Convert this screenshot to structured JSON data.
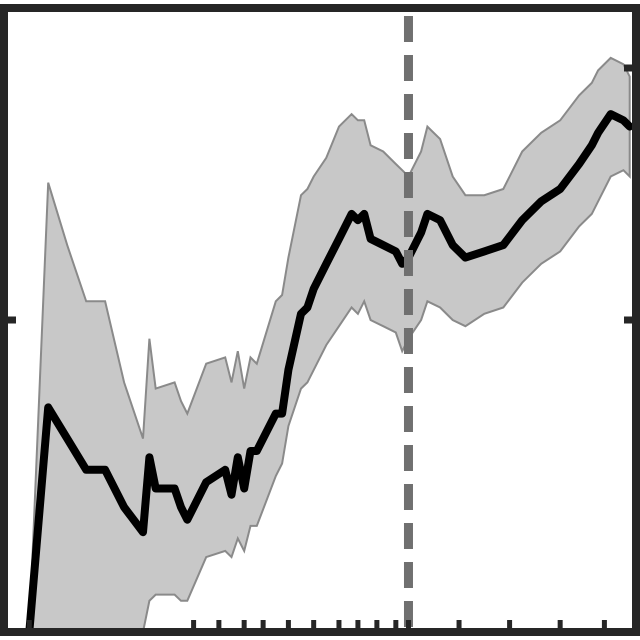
{
  "chart_data": {
    "type": "line",
    "title": "",
    "xlabel": "",
    "ylabel": "",
    "grid": false,
    "legend": "none",
    "xlim": [
      0,
      100
    ],
    "ylim": [
      0,
      1
    ],
    "vline": {
      "x": 64,
      "style": "dashed",
      "color": "#707070"
    },
    "colors": {
      "line": "#000000",
      "band_fill": "#c8c8c8",
      "band_edge": "#8a8a8a",
      "axis": "#262626"
    },
    "series": [
      {
        "x": [
          4,
          7,
          10,
          13,
          16,
          19,
          22,
          23,
          24,
          27,
          28,
          29,
          32,
          35,
          36,
          37,
          38,
          39,
          40,
          43,
          44,
          45,
          47,
          48,
          49,
          51,
          53,
          55,
          56,
          57,
          58,
          60,
          62,
          63,
          64,
          66,
          67,
          69,
          71,
          73,
          76,
          79,
          82,
          85,
          88,
          91,
          93,
          94,
          96,
          98,
          99
        ],
        "y": [
          0.0,
          0.36,
          0.31,
          0.26,
          0.26,
          0.2,
          0.16,
          0.28,
          0.23,
          0.23,
          0.2,
          0.18,
          0.24,
          0.26,
          0.22,
          0.28,
          0.23,
          0.29,
          0.29,
          0.35,
          0.35,
          0.42,
          0.51,
          0.52,
          0.55,
          0.59,
          0.63,
          0.67,
          0.66,
          0.67,
          0.63,
          0.62,
          0.61,
          0.59,
          0.6,
          0.64,
          0.67,
          0.66,
          0.62,
          0.6,
          0.61,
          0.62,
          0.66,
          0.69,
          0.71,
          0.75,
          0.78,
          0.8,
          0.83,
          0.82,
          0.81
        ],
        "lower": [
          0.0,
          0.0,
          0.0,
          0.0,
          0.0,
          0.0,
          0.0,
          0.05,
          0.06,
          0.06,
          0.05,
          0.05,
          0.12,
          0.13,
          0.12,
          0.15,
          0.13,
          0.17,
          0.17,
          0.25,
          0.27,
          0.33,
          0.39,
          0.4,
          0.42,
          0.46,
          0.49,
          0.52,
          0.51,
          0.53,
          0.5,
          0.49,
          0.48,
          0.45,
          0.47,
          0.5,
          0.53,
          0.52,
          0.5,
          0.49,
          0.51,
          0.52,
          0.56,
          0.59,
          0.61,
          0.65,
          0.67,
          0.69,
          0.73,
          0.74,
          0.73
        ],
        "upper": [
          0.0,
          0.72,
          0.62,
          0.53,
          0.53,
          0.4,
          0.31,
          0.47,
          0.39,
          0.4,
          0.37,
          0.35,
          0.43,
          0.44,
          0.4,
          0.45,
          0.39,
          0.44,
          0.43,
          0.53,
          0.54,
          0.6,
          0.7,
          0.71,
          0.73,
          0.76,
          0.81,
          0.83,
          0.82,
          0.82,
          0.78,
          0.77,
          0.75,
          0.74,
          0.73,
          0.77,
          0.81,
          0.79,
          0.73,
          0.7,
          0.7,
          0.71,
          0.77,
          0.8,
          0.82,
          0.86,
          0.88,
          0.9,
          0.92,
          0.91,
          0.89
        ]
      }
    ],
    "x_ticks": [
      4,
      30,
      34,
      38,
      41,
      45,
      49,
      53,
      56,
      59,
      62,
      64,
      72,
      80,
      88,
      95
    ],
    "y_ticks_left": [
      0.5,
      1
    ],
    "y_ticks_right": [
      0.5,
      1
    ]
  }
}
